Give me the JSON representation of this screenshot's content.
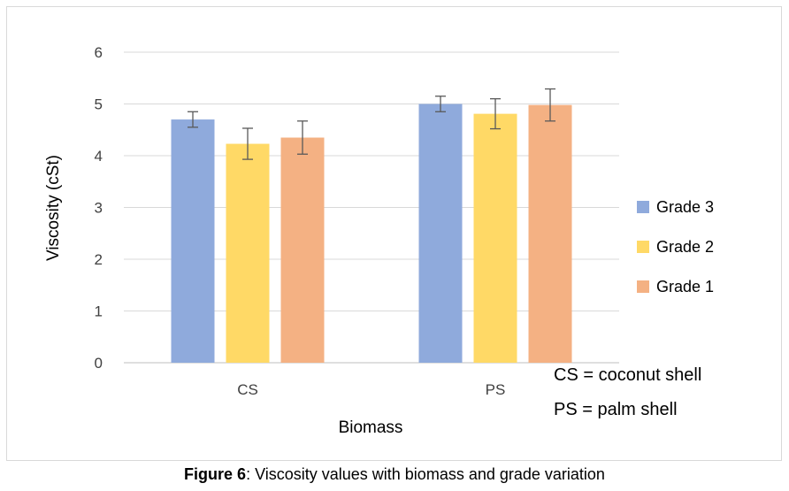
{
  "chart_data": {
    "type": "bar",
    "categories": [
      "CS",
      "PS"
    ],
    "series": [
      {
        "name": "Grade 3",
        "values": [
          4.7,
          5.0
        ],
        "errors": [
          0.15,
          0.15
        ],
        "color": "#8faadc"
      },
      {
        "name": "Grade 2",
        "values": [
          4.23,
          4.81
        ],
        "errors": [
          0.3,
          0.29
        ],
        "color": "#ffd966"
      },
      {
        "name": "Grade 1",
        "values": [
          4.35,
          4.98
        ],
        "errors": [
          0.32,
          0.31
        ],
        "color": "#f4b183"
      }
    ],
    "xlabel": "Biomass",
    "ylabel": "Viscosity (cSt)",
    "ylim": [
      0,
      6
    ],
    "yticks": [
      "0",
      "1",
      "2",
      "3",
      "4",
      "5",
      "6"
    ],
    "grid": true,
    "legend_position": "right",
    "annotations": [
      "CS = coconut shell",
      "PS = palm shell"
    ]
  },
  "caption": {
    "label": "Figure 6",
    "text": ": Viscosity values with biomass and grade variation"
  },
  "colors": {
    "gridline": "#d9d9d9",
    "axis": "#bfbfbf",
    "error_bar": "#595959"
  }
}
